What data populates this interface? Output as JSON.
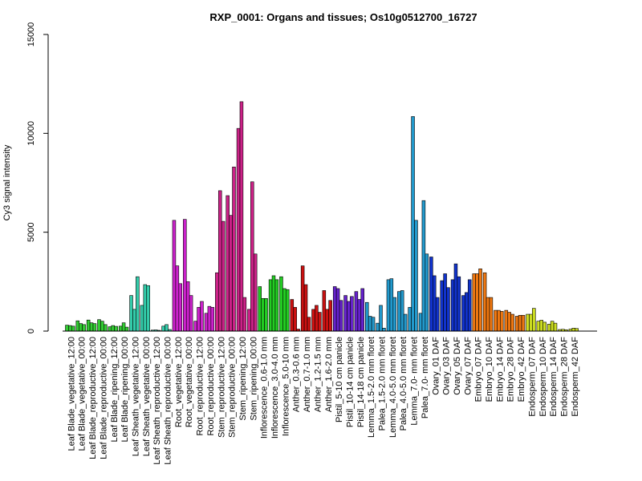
{
  "chart_data": {
    "type": "bar",
    "title": "RXP_0001: Organs and tissues; Os10g0512700_16727",
    "xlabel": "",
    "ylabel": "Cy3 signal intensity",
    "ylim": [
      0,
      15000
    ],
    "yticks": [
      0,
      5000,
      10000,
      15000
    ],
    "grid": false,
    "categories": [
      "Leaf Blade_vegetative_12:00",
      "Leaf Blade_vegetative_00:00",
      "Leaf Blade_reproductive_12:00",
      "Leaf Blade_reproductive_00:00",
      "Leaf Blade_ripening_12:00",
      "Leaf Blade_ripening_00:00",
      "Leaf Sheath_vegetative_12:00",
      "Leaf Sheath_vegetative_00:00",
      "Leaf Sheath_reproductive_12:00",
      "Leaf Sheath_reproductive_00:00",
      "Root_vegetative_12:00",
      "Root_vegetative_00:00",
      "Root_reproductive_12:00",
      "Root_reproductive_00:00",
      "Stem_reproductive_12:00",
      "Stem_reproductive_00:00",
      "Stem_ripening_12:00",
      "Stem_ripening_00:00",
      "Inflorescence_0.6-1.0 mm",
      "Inflorescence_3.0-4.0 mm",
      "Inflorescence_5.0-10 mm",
      "Anther_0.3-0.6 mm",
      "Anther_0.7-1.0 mm",
      "Anther_1.2-1.5 mm",
      "Anther_1.6-2.0 mm",
      "Pistil_5-10 cm panicle",
      "Pistil_10-14 cm panicle",
      "Pistil_14-18 cm panicle",
      "Lemma_1.5-2.0 mm floret",
      "Palea_1.5-2.0 mm floret",
      "Lemma_4.0-5.0 mm floret",
      "Palea_4.0-5.0 mm floret",
      "Lemma_7.0- mm floret",
      "Palea_7.0- mm floret",
      "Ovary_01 DAF",
      "Ovary_03 DAF",
      "Ovary_05 DAF",
      "Ovary_07 DAF",
      "Embryo_07 DAF",
      "Embryo_10 DAF",
      "Embryo_14 DAF",
      "Embryo_28 DAF",
      "Embryo_42 DAF",
      "Endosperm_07 DAF",
      "Endosperm_10 DAF",
      "Endosperm_14 DAF",
      "Endosperm_28 DAF",
      "Endosperm_42 DAF"
    ],
    "colors": [
      "#33cc33",
      "#33cc33",
      "#33cc33",
      "#33cc33",
      "#33cc33",
      "#33cc33",
      "#33ccaa",
      "#33ccaa",
      "#33ccaa",
      "#33ccaa",
      "#cc22cc",
      "#cc22cc",
      "#cc22cc",
      "#cc22cc",
      "#cc2288",
      "#cc2288",
      "#cc2288",
      "#cc2288",
      "#22cc22",
      "#22cc22",
      "#22cc22",
      "#cc1111",
      "#cc1111",
      "#cc1111",
      "#cc1111",
      "#6622cc",
      "#6622cc",
      "#6622cc",
      "#2299cc",
      "#2299cc",
      "#2299cc",
      "#2299cc",
      "#2299cc",
      "#2299cc",
      "#1133cc",
      "#1133cc",
      "#1133cc",
      "#1133cc",
      "#ee7711",
      "#ee7711",
      "#ee7711",
      "#ee7711",
      "#ee7711",
      "#ccdd22",
      "#ccdd22",
      "#ccdd22",
      "#ccdd22",
      "#ccdd22"
    ],
    "values": [
      [
        300,
        280,
        250
      ],
      [
        520,
        380,
        330
      ],
      [
        560,
        420,
        380
      ],
      [
        580,
        500,
        330
      ],
      [
        220,
        280,
        240
      ],
      [
        250,
        420,
        200
      ],
      [
        1800,
        1100,
        2750
      ],
      [
        1300,
        2350,
        2300
      ],
      [
        50,
        60,
        40
      ],
      [
        250,
        330,
        80
      ],
      [
        5600,
        3300,
        2400
      ],
      [
        5650,
        2500,
        1800
      ],
      [
        500,
        1200,
        1500
      ],
      [
        900,
        1250,
        1200
      ],
      [
        2950,
        7100,
        5550
      ],
      [
        6850,
        5850,
        8300
      ],
      [
        10250,
        11600,
        1700
      ],
      [
        1100,
        7550,
        3900
      ],
      [
        2250,
        1650,
        1650
      ],
      [
        2600,
        2800,
        2600
      ],
      [
        2750,
        2150,
        2100
      ],
      [
        1600,
        1200,
        100
      ],
      [
        3300,
        2350,
        700
      ],
      [
        1100,
        1300,
        950
      ],
      [
        2050,
        1100,
        1550
      ],
      [
        2250,
        2150,
        1550
      ],
      [
        1800,
        1500,
        1750
      ],
      [
        2000,
        1600,
        2150
      ],
      [
        1450,
        750,
        700
      ],
      [
        400,
        1300,
        150
      ],
      [
        2600,
        2650,
        1700
      ],
      [
        2000,
        2050,
        850
      ],
      [
        1200,
        10850,
        5600
      ],
      [
        900,
        6600,
        3900
      ],
      [
        3750,
        2800,
        1700
      ],
      [
        2550,
        2900,
        2200
      ],
      [
        2600,
        3400,
        2750
      ],
      [
        1800,
        1950,
        2600
      ],
      [
        2900,
        2900,
        3150
      ],
      [
        2950,
        1700,
        1700
      ],
      [
        1050,
        1050,
        1000
      ],
      [
        1050,
        950,
        850
      ],
      [
        750,
        800,
        800
      ],
      [
        850,
        850,
        1150
      ],
      [
        500,
        550,
        450
      ],
      [
        350,
        500,
        400
      ],
      [
        80,
        90,
        70
      ],
      [
        100,
        150,
        130
      ]
    ]
  }
}
